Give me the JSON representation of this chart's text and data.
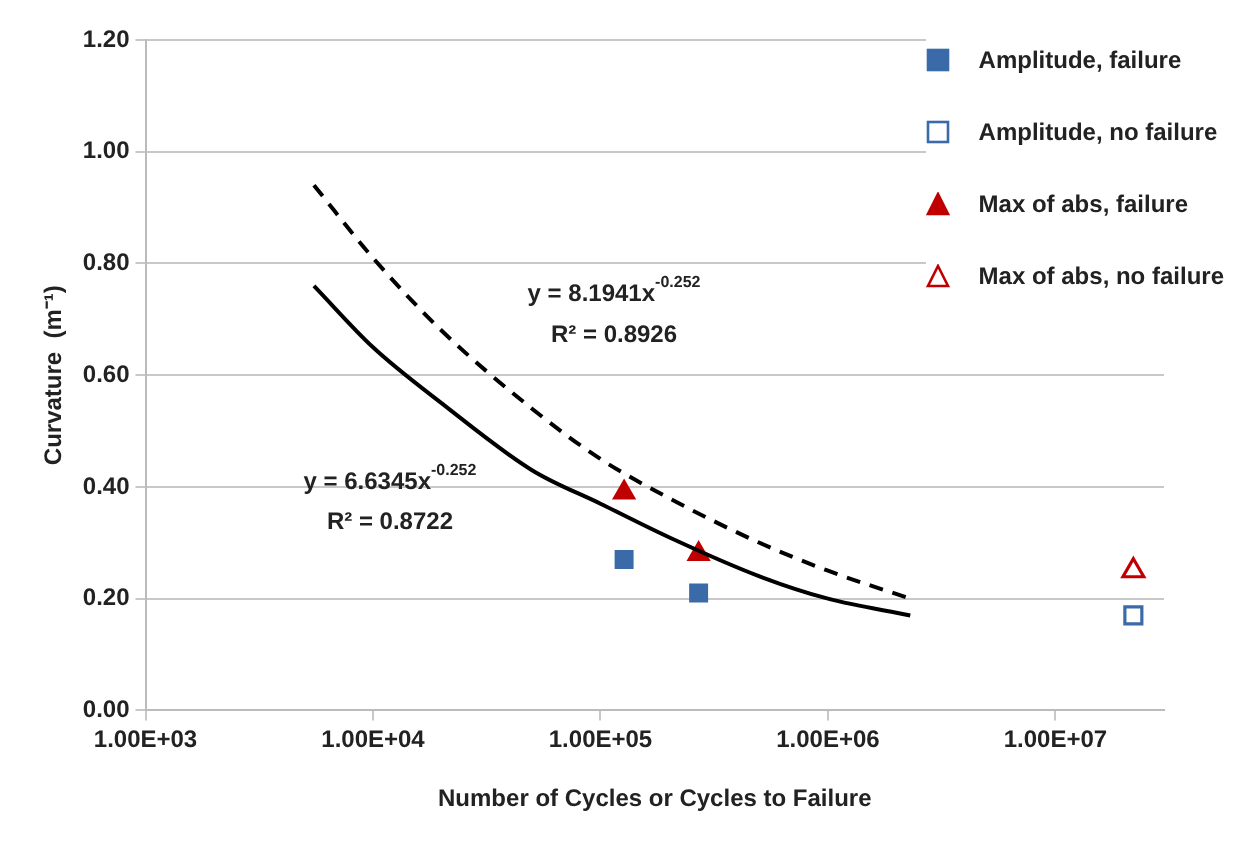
{
  "chart_data": {
    "type": "scatter",
    "xlabel": "Number of Cycles or Cycles to Failure",
    "ylabel": "Curvature  (m⁻¹)",
    "log": "x",
    "xlim": [
      1000,
      30000000
    ],
    "xticks": [
      {
        "value": 1000,
        "label": "1.00E+03"
      },
      {
        "value": 10000,
        "label": "1.00E+04"
      },
      {
        "value": 100000,
        "label": "1.00E+05"
      },
      {
        "value": 1000000,
        "label": "1.00E+06"
      },
      {
        "value": 10000000,
        "label": "1.00E+07"
      }
    ],
    "ylim": [
      0,
      1.2
    ],
    "yticks": [
      {
        "value": 0,
        "label": "0.00"
      },
      {
        "value": 0.2,
        "label": "0.20"
      },
      {
        "value": 0.4,
        "label": "0.40"
      },
      {
        "value": 0.6,
        "label": "0.60"
      },
      {
        "value": 0.8,
        "label": "0.80"
      },
      {
        "value": 1,
        "label": "1.00"
      },
      {
        "value": 1.2,
        "label": "1.20"
      }
    ],
    "grid": "y",
    "legend": "top right",
    "series": [
      {
        "type": "line",
        "color": "#000000",
        "line_style": "solid",
        "marker": "none",
        "x": [
          5500,
          10000,
          20000,
          50000,
          100000,
          200000,
          500000,
          1000000,
          2300000
        ],
        "values": [
          0.76,
          0.65,
          0.55,
          0.43,
          0.37,
          0.31,
          0.24,
          0.2,
          0.17
        ]
      },
      {
        "type": "line",
        "color": "#000000",
        "line_style": "dashed",
        "marker": "none",
        "x": [
          5500,
          10000,
          20000,
          50000,
          100000,
          200000,
          500000,
          1000000,
          2300000
        ],
        "values": [
          0.94,
          0.81,
          0.68,
          0.54,
          0.45,
          0.38,
          0.3,
          0.25,
          0.2
        ]
      },
      {
        "name": "Amplitude, failure",
        "type": "scatter",
        "marker": "square",
        "color": "#3a6aa8",
        "x": [
          127000,
          270000
        ],
        "values": [
          0.27,
          0.21
        ]
      },
      {
        "name": "Amplitude, no failure",
        "type": "scatter",
        "marker": "square-open",
        "color": "#3a6aa8",
        "x": [
          22000000
        ],
        "values": [
          0.17
        ]
      },
      {
        "name": "Max of abs, failure",
        "type": "scatter",
        "marker": "triangle",
        "color": "#c00000",
        "x": [
          127000,
          270000
        ],
        "values": [
          0.39,
          0.28
        ]
      },
      {
        "name": "Max of abs, no failure",
        "type": "scatter",
        "marker": "triangle-open",
        "color": "#c00000",
        "x": [
          22000000
        ],
        "values": [
          0.25
        ]
      }
    ],
    "annotations": [
      "y = 8.1941x$^{-0.252}$",
      "R² = 0.8926",
      "y = 6.6345x$^{-0.252}$",
      "R² = 0.8722"
    ]
  }
}
